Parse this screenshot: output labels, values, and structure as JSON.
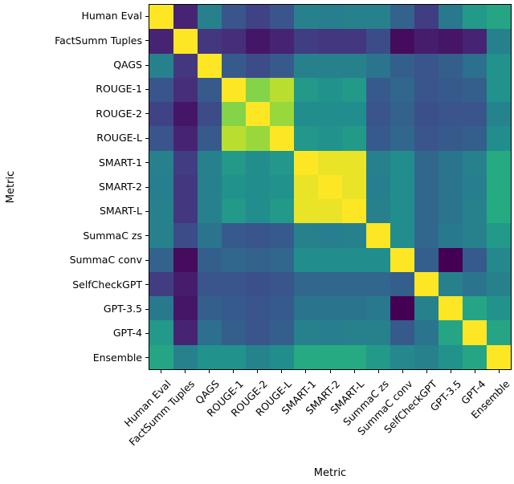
{
  "chart_data": {
    "type": "heatmap",
    "title": "",
    "xlabel": "Metric",
    "ylabel": "Metric",
    "colormap": "viridis",
    "value_range": [
      0,
      1
    ],
    "legend": "none",
    "labels": [
      "Human Eval",
      "FactSumm Tuples",
      "QAGS",
      "ROUGE-1",
      "ROUGE-2",
      "ROUGE-L",
      "SMART-1",
      "SMART-2",
      "SMART-L",
      "SummaC zs",
      "SummaC conv",
      "SelfCheckGPT",
      "GPT-3.5",
      "GPT-4",
      "Ensemble"
    ],
    "matrix": [
      [
        1.0,
        0.12,
        0.45,
        0.28,
        0.22,
        0.28,
        0.45,
        0.44,
        0.45,
        0.45,
        0.33,
        0.2,
        0.42,
        0.55,
        0.6
      ],
      [
        0.12,
        1.0,
        0.18,
        0.15,
        0.08,
        0.12,
        0.2,
        0.18,
        0.18,
        0.25,
        0.05,
        0.1,
        0.08,
        0.12,
        0.45
      ],
      [
        0.45,
        0.18,
        1.0,
        0.3,
        0.25,
        0.3,
        0.45,
        0.45,
        0.45,
        0.4,
        0.32,
        0.28,
        0.32,
        0.38,
        0.52
      ],
      [
        0.28,
        0.15,
        0.3,
        1.0,
        0.82,
        0.9,
        0.55,
        0.52,
        0.55,
        0.3,
        0.35,
        0.28,
        0.3,
        0.32,
        0.52
      ],
      [
        0.22,
        0.08,
        0.25,
        0.82,
        1.0,
        0.85,
        0.5,
        0.5,
        0.5,
        0.28,
        0.33,
        0.26,
        0.28,
        0.28,
        0.46
      ],
      [
        0.28,
        0.12,
        0.3,
        0.9,
        0.85,
        1.0,
        0.54,
        0.52,
        0.55,
        0.3,
        0.35,
        0.28,
        0.3,
        0.32,
        0.5
      ],
      [
        0.45,
        0.2,
        0.45,
        0.55,
        0.5,
        0.54,
        1.0,
        0.97,
        0.97,
        0.45,
        0.5,
        0.35,
        0.4,
        0.45,
        0.62
      ],
      [
        0.44,
        0.18,
        0.45,
        0.52,
        0.5,
        0.52,
        0.97,
        1.0,
        0.97,
        0.44,
        0.5,
        0.35,
        0.4,
        0.44,
        0.62
      ],
      [
        0.45,
        0.18,
        0.45,
        0.55,
        0.5,
        0.55,
        0.97,
        0.97,
        1.0,
        0.45,
        0.5,
        0.35,
        0.4,
        0.45,
        0.62
      ],
      [
        0.45,
        0.25,
        0.4,
        0.3,
        0.28,
        0.3,
        0.45,
        0.44,
        0.45,
        1.0,
        0.5,
        0.35,
        0.42,
        0.45,
        0.55
      ],
      [
        0.33,
        0.05,
        0.32,
        0.35,
        0.33,
        0.35,
        0.5,
        0.5,
        0.5,
        0.5,
        1.0,
        0.32,
        0.02,
        0.3,
        0.48
      ],
      [
        0.2,
        0.1,
        0.28,
        0.28,
        0.26,
        0.28,
        0.35,
        0.35,
        0.35,
        0.35,
        0.32,
        1.0,
        0.45,
        0.4,
        0.45
      ],
      [
        0.42,
        0.08,
        0.32,
        0.3,
        0.28,
        0.3,
        0.4,
        0.4,
        0.4,
        0.42,
        0.02,
        0.45,
        1.0,
        0.6,
        0.52
      ],
      [
        0.55,
        0.12,
        0.38,
        0.32,
        0.28,
        0.32,
        0.45,
        0.44,
        0.45,
        0.45,
        0.3,
        0.4,
        0.6,
        1.0,
        0.6
      ],
      [
        0.6,
        0.45,
        0.52,
        0.52,
        0.46,
        0.5,
        0.62,
        0.62,
        0.62,
        0.55,
        0.48,
        0.45,
        0.52,
        0.6,
        1.0
      ]
    ],
    "style": {
      "background": "#ffffff",
      "text_color": "#000000",
      "axis_color": "#000000",
      "low_color": "#440154",
      "high_color": "#fde725"
    }
  }
}
